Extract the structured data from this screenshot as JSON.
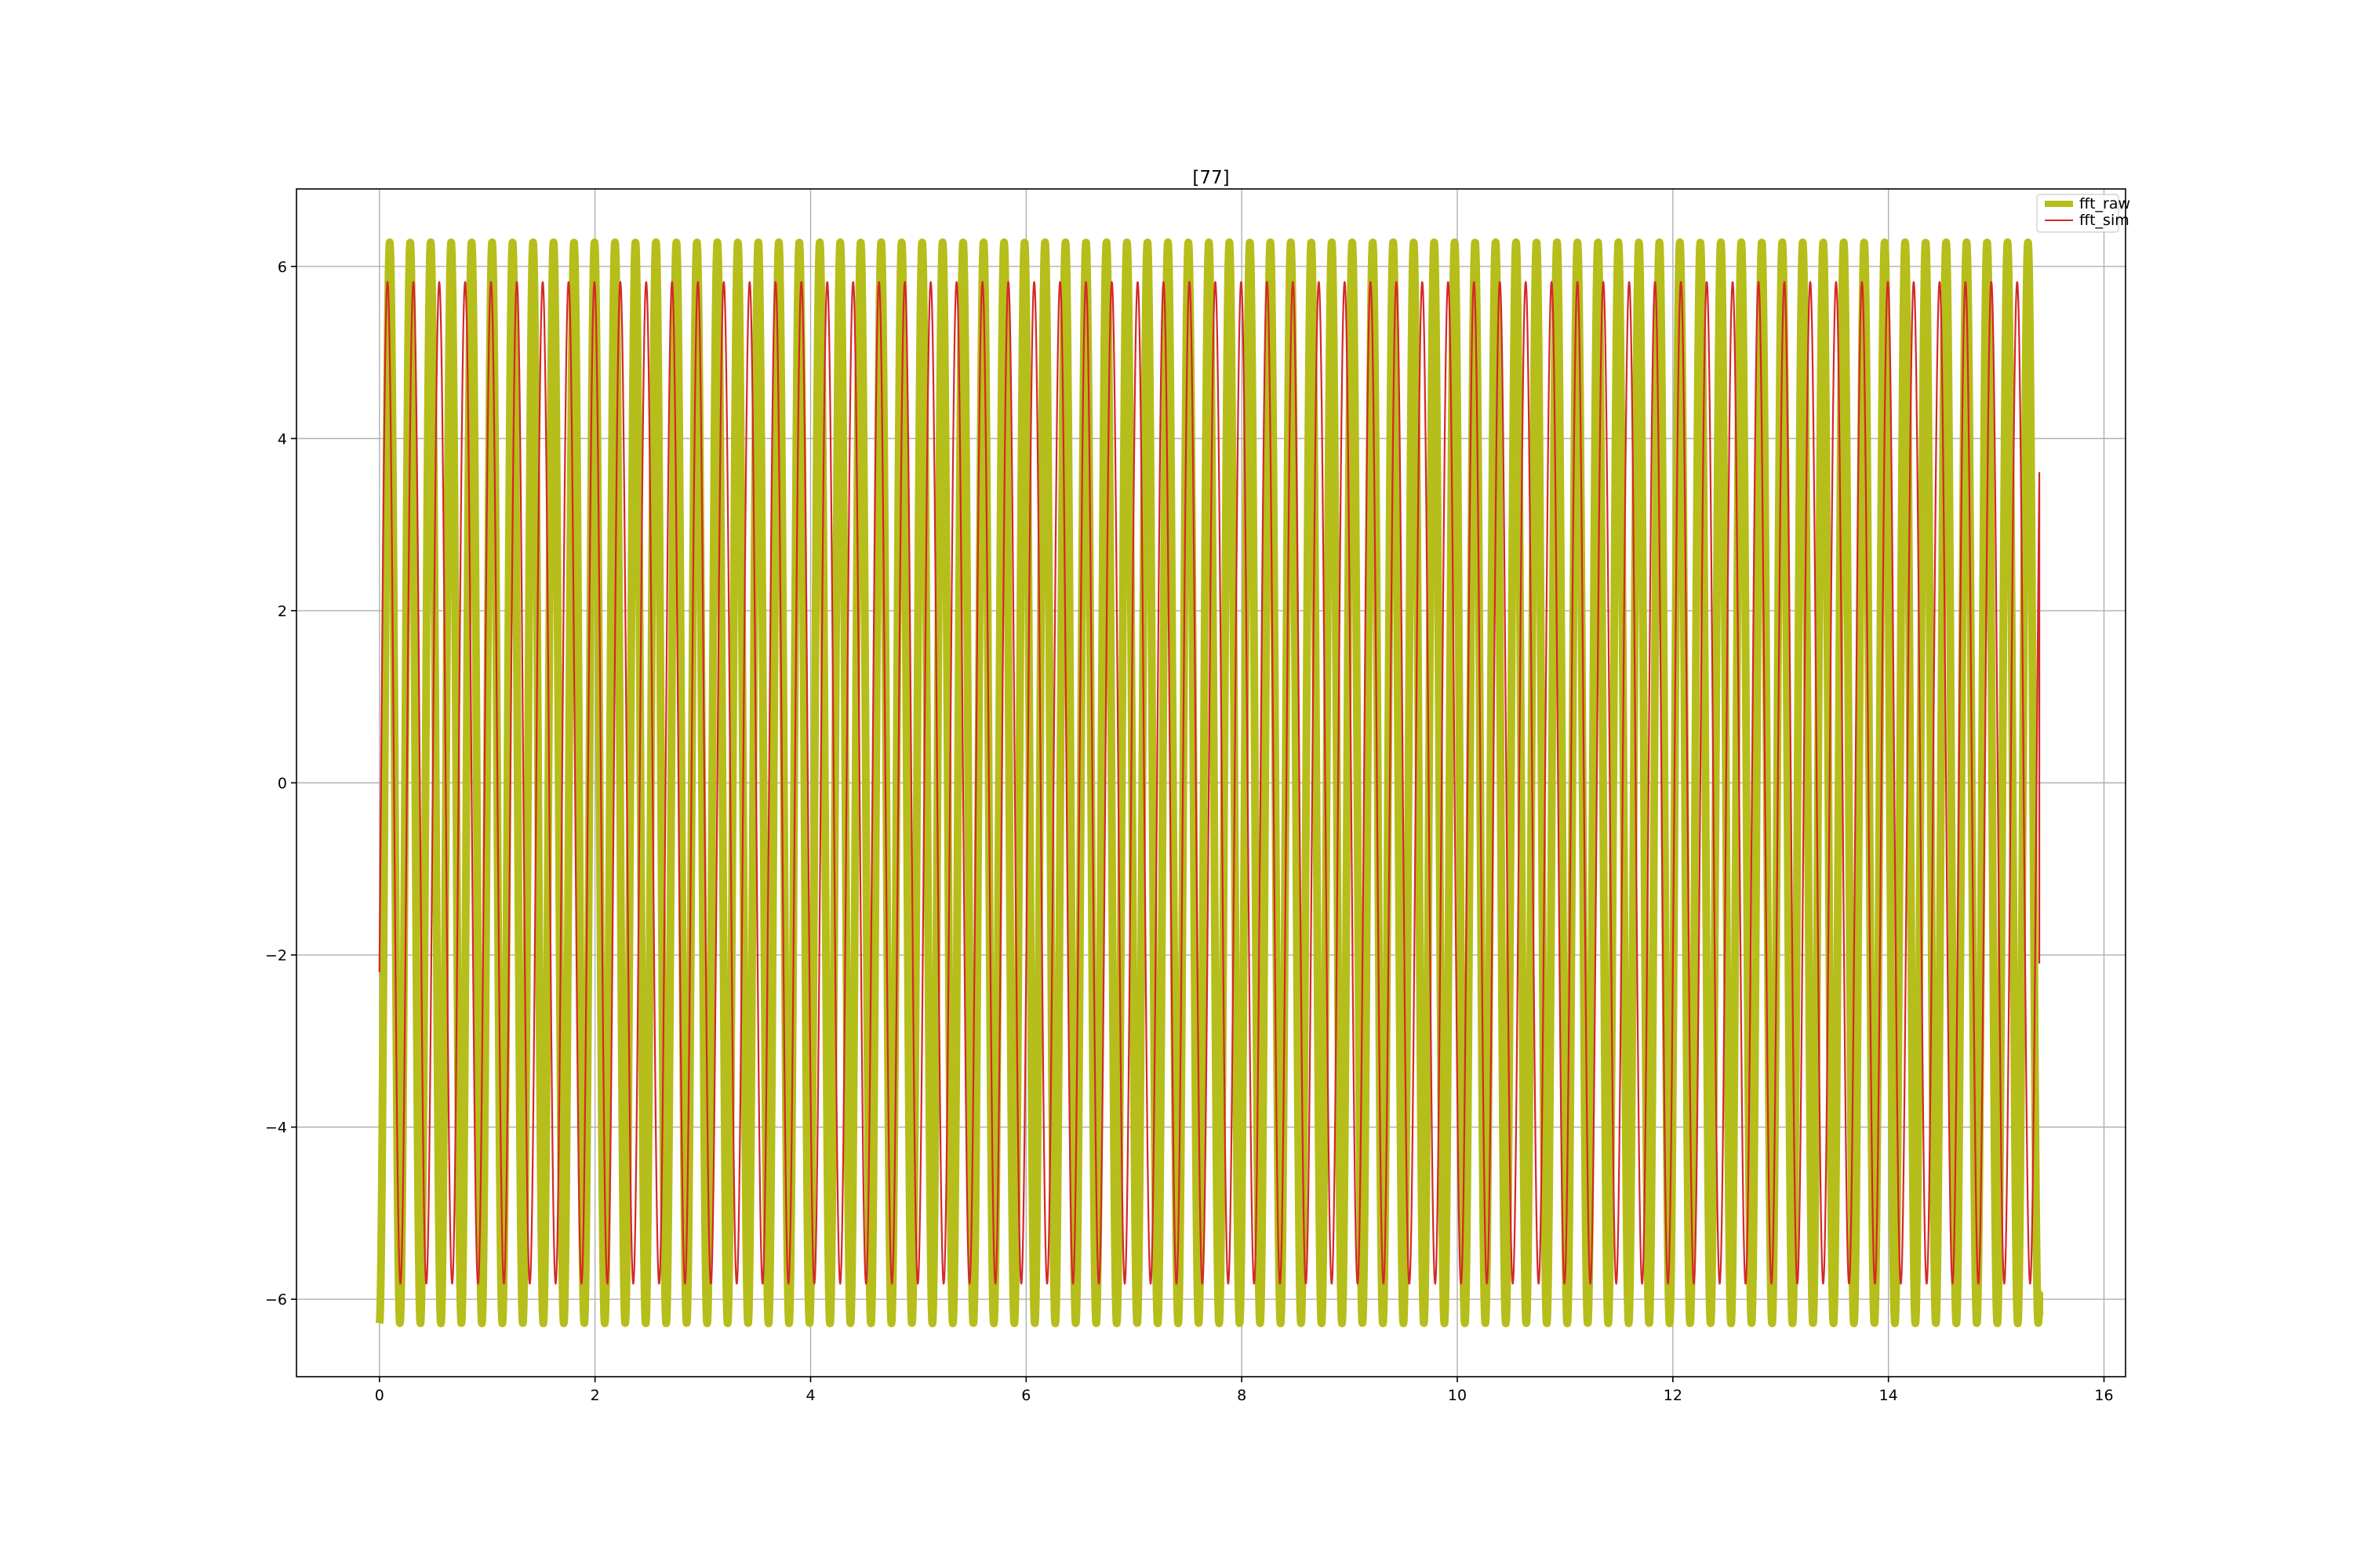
{
  "chart_data": {
    "type": "line",
    "title": "[77]",
    "xlabel": "",
    "ylabel": "",
    "xlim": [
      -0.77,
      16.2
    ],
    "ylim": [
      -6.9,
      6.9
    ],
    "x_ticks": [
      0,
      2,
      4,
      6,
      8,
      10,
      12,
      14,
      16
    ],
    "y_ticks": [
      -6,
      -4,
      -2,
      0,
      2,
      4,
      6
    ],
    "x_tick_labels": [
      "0",
      "2",
      "4",
      "6",
      "8",
      "10",
      "12",
      "14",
      "16"
    ],
    "y_tick_labels": [
      "−6",
      "−4",
      "−2",
      "0",
      "2",
      "4",
      "6"
    ],
    "grid": true,
    "legend_position": "upper right",
    "series": [
      {
        "name": "fft_raw",
        "color": "#b5be1a",
        "style": "thick",
        "x_start": 0,
        "x_end": 15.4,
        "amplitude": 6.28,
        "period": 0.19,
        "phase": -1.5708,
        "y_start": -6.28,
        "y_end": -6.2
      },
      {
        "name": "fft_sim",
        "color": "#d62728",
        "style": "thin",
        "x_start": 0,
        "x_end": 15.4,
        "amplitude": 5.82,
        "period": 0.24,
        "phase": -0.38,
        "y_start": -2.2,
        "y_end": -2.1
      }
    ]
  }
}
